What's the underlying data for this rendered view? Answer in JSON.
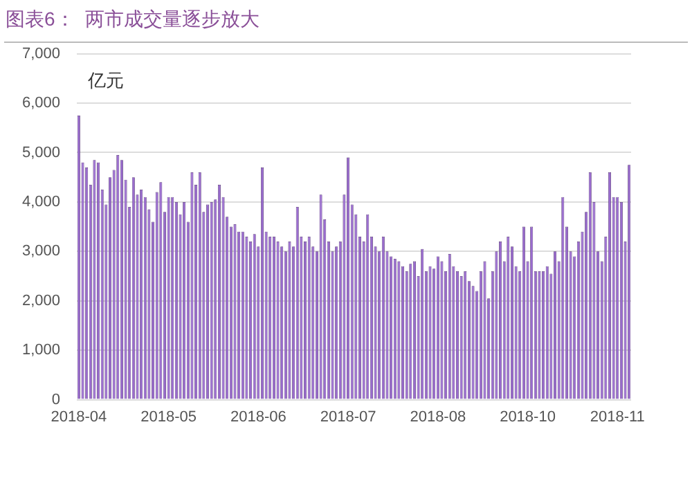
{
  "chart_data": {
    "type": "bar",
    "title": "图表6：  两市成交量逐步放大",
    "ylabel": "亿元",
    "categories": [
      "2018-04",
      null,
      null,
      null,
      null,
      null,
      null,
      null,
      null,
      null,
      null,
      null,
      null,
      null,
      null,
      null,
      null,
      null,
      null,
      null,
      null,
      null,
      null,
      "2018-05",
      null,
      null,
      null,
      null,
      null,
      null,
      null,
      null,
      null,
      null,
      null,
      null,
      null,
      null,
      null,
      null,
      null,
      null,
      null,
      null,
      null,
      null,
      "2018-06",
      null,
      null,
      null,
      null,
      null,
      null,
      null,
      null,
      null,
      null,
      null,
      null,
      null,
      null,
      null,
      null,
      null,
      null,
      null,
      null,
      null,
      null,
      "2018-07",
      null,
      null,
      null,
      null,
      null,
      null,
      null,
      null,
      null,
      null,
      null,
      null,
      null,
      null,
      null,
      null,
      null,
      null,
      null,
      null,
      null,
      null,
      "2018-08",
      null,
      null,
      null,
      null,
      null,
      null,
      null,
      null,
      null,
      null,
      null,
      null,
      null,
      null,
      null,
      null,
      null,
      null,
      null,
      null,
      null,
      null,
      "2018-10",
      null,
      null,
      null,
      null,
      null,
      null,
      null,
      null,
      null,
      null,
      null,
      null,
      null,
      null,
      null,
      null,
      null,
      null,
      null,
      null,
      null,
      null,
      "2018-11",
      null,
      null,
      null
    ],
    "values": [
      5750,
      4800,
      4700,
      4350,
      4850,
      4800,
      4250,
      3950,
      4500,
      4650,
      4950,
      4850,
      4450,
      3900,
      4500,
      4150,
      4250,
      4100,
      3850,
      3600,
      4200,
      4400,
      3800,
      4100,
      4100,
      4000,
      3750,
      4000,
      3600,
      4600,
      4350,
      4600,
      3800,
      3950,
      4000,
      4050,
      4350,
      4100,
      3700,
      3500,
      3550,
      3400,
      3400,
      3300,
      3200,
      3350,
      3100,
      4700,
      3400,
      3300,
      3300,
      3200,
      3100,
      3000,
      3200,
      3100,
      3900,
      3300,
      3200,
      3300,
      3100,
      3000,
      4150,
      3650,
      3200,
      3000,
      3100,
      3200,
      4150,
      4900,
      3950,
      3750,
      3300,
      3200,
      3750,
      3300,
      3100,
      3000,
      3300,
      3000,
      2900,
      2850,
      2800,
      2700,
      2600,
      2750,
      2800,
      2500,
      3050,
      2600,
      2700,
      2650,
      2900,
      2800,
      2600,
      2950,
      2700,
      2600,
      2500,
      2600,
      2400,
      2300,
      2200,
      2600,
      2800,
      2050,
      2600,
      3000,
      3200,
      2800,
      3300,
      3100,
      2700,
      2600,
      3500,
      2800,
      3500,
      2600,
      2600,
      2600,
      2700,
      2550,
      3000,
      2800,
      4100,
      3500,
      3000,
      2900,
      3200,
      3400,
      3800,
      4600,
      4000,
      3000,
      2800,
      3300,
      4600,
      4100,
      4100,
      4000,
      3200,
      4750
    ],
    "color": "#9a6ccf",
    "ylim": [
      0,
      7000
    ],
    "yticks": [
      0,
      {
        "value": 1000,
        "label": "1,000"
      },
      {
        "value": 2000,
        "label": "2,000"
      },
      {
        "value": 3000,
        "label": "3,000"
      },
      {
        "value": 4000,
        "label": "4,000"
      },
      {
        "value": 5000,
        "label": "5,000"
      },
      {
        "value": 6000,
        "label": "6,000"
      },
      {
        "value": 7000,
        "label": "7,000"
      }
    ],
    "grid": "y"
  }
}
